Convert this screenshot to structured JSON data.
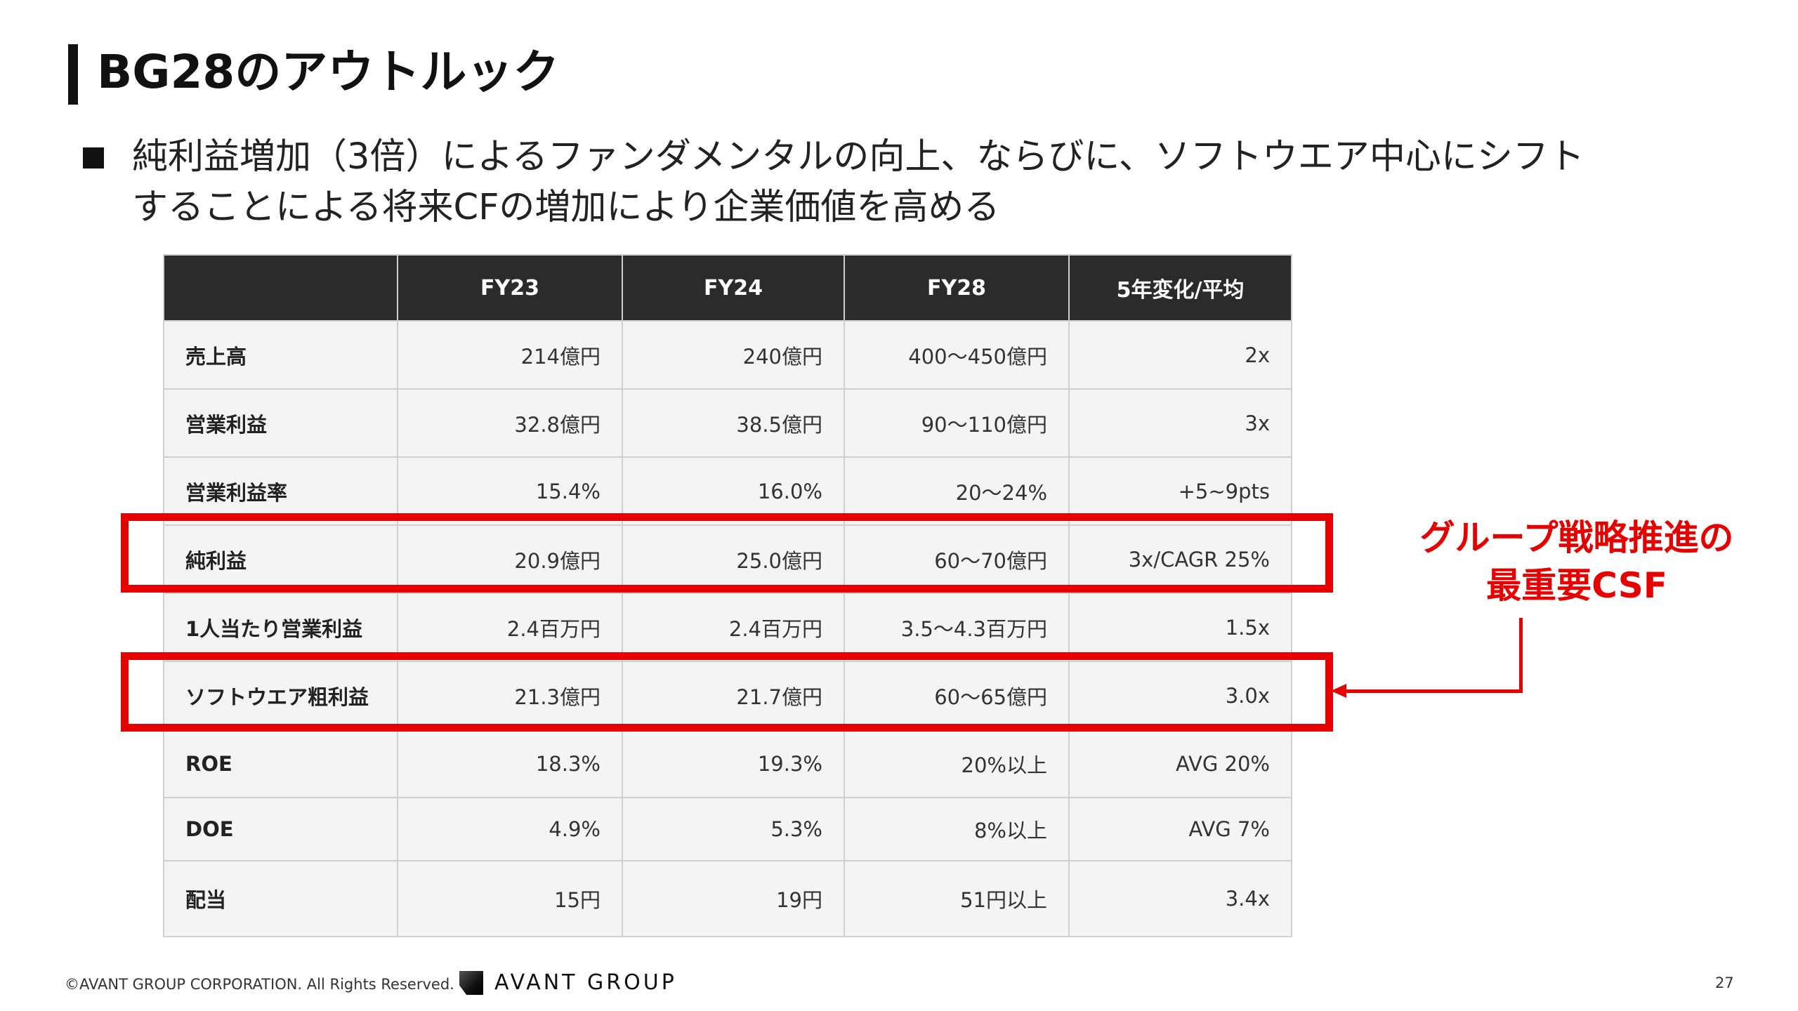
{
  "slide": {
    "title": "BG28のアウトルック",
    "bullet_line1": "純利益増加（3倍）によるファンダメンタルの向上、ならびに、ソフトウエア中心にシフト",
    "bullet_line2": "することによる将来CFの増加により企業価値を高める"
  },
  "table": {
    "headers": [
      "",
      "FY23",
      "FY24",
      "FY28",
      "5年変化/平均"
    ],
    "rows": [
      {
        "label": "売上高",
        "fy23": "214億円",
        "fy24": "240億円",
        "fy28": "400～450億円",
        "change": "2x"
      },
      {
        "label": "営業利益",
        "fy23": "32.8億円",
        "fy24": "38.5億円",
        "fy28": "90～110億円",
        "change": "3x"
      },
      {
        "label": "営業利益率",
        "fy23": "15.4%",
        "fy24": "16.0%",
        "fy28": "20～24%",
        "change": "+5~9pts"
      },
      {
        "label": "純利益",
        "fy23": "20.9億円",
        "fy24": "25.0億円",
        "fy28": "60～70億円",
        "change": "3x/CAGR 25%"
      },
      {
        "label": "1人当たり営業利益",
        "fy23": "2.4百万円",
        "fy24": "2.4百万円",
        "fy28": "3.5～4.3百万円",
        "change": "1.5x"
      },
      {
        "label": "ソフトウエア粗利益",
        "fy23": "21.3億円",
        "fy24": "21.7億円",
        "fy28": "60～65億円",
        "change": "3.0x"
      },
      {
        "label": "ROE",
        "fy23": "18.3%",
        "fy24": "19.3%",
        "fy28": "20%以上",
        "change": "AVG 20%"
      },
      {
        "label": "DOE",
        "fy23": "4.9%",
        "fy24": "5.3%",
        "fy28": "8%以上",
        "change": "AVG 7%"
      },
      {
        "label": "配当",
        "fy23": "15円",
        "fy24": "19円",
        "fy28": "51円以上",
        "change": "3.4x"
      }
    ]
  },
  "callout": {
    "line1": "グループ戦略推進の",
    "line2": "最重要CSF"
  },
  "footer": {
    "copyright": "©AVANT GROUP CORPORATION. All Rights Reserved.",
    "logo_text": "AVANT GROUP",
    "page_number": "27"
  },
  "colors": {
    "highlight": "#e60000",
    "header_bg": "#2b2b2b",
    "cell_bg": "#f4f4f4"
  }
}
